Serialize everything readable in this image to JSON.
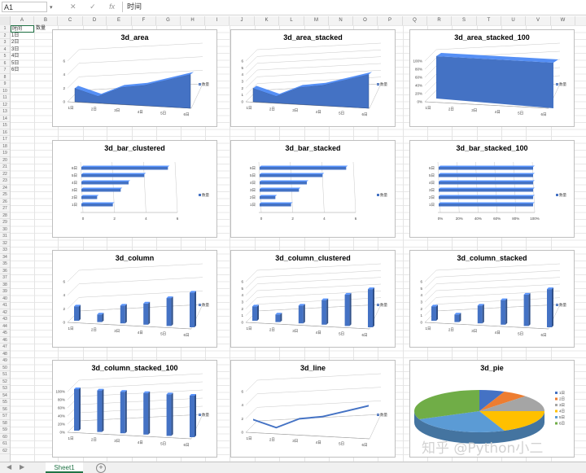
{
  "formula_bar": {
    "name_box": "A1",
    "name_arrow": "▾",
    "cancel_icon": "✕",
    "enter_icon": "✓",
    "fx_icon": "fx",
    "formula_value": "时间"
  },
  "columns": [
    "A",
    "B",
    "C",
    "D",
    "E",
    "F",
    "G",
    "H",
    "I",
    "J",
    "K",
    "L",
    "M",
    "N",
    "O",
    "P",
    "Q",
    "R",
    "S",
    "T",
    "U",
    "V",
    "W"
  ],
  "rows_count": 62,
  "cells": {
    "A1": "时间",
    "B1": "数量",
    "col_a_values": [
      "1日",
      "2日",
      "3日",
      "4日",
      "5日",
      "6日"
    ]
  },
  "sheet_tabs": {
    "active": "Sheet1",
    "add_icon": "+",
    "nav_prev": "◀",
    "nav_next": "▶"
  },
  "watermark": "知乎 @Python小二",
  "colors": {
    "series": "#4472c4",
    "pie": [
      "#4472c4",
      "#ed7d31",
      "#a5a5a5",
      "#ffc000",
      "#5b9bd5",
      "#70ad47"
    ]
  },
  "chart_data": [
    {
      "type": "area",
      "title": "3d_area",
      "categories": [
        "1日",
        "2日",
        "3日",
        "4日",
        "5日",
        "6日"
      ],
      "series": [
        {
          "name": "数量",
          "values": [
            2,
            1,
            2.5,
            3,
            4,
            5
          ]
        }
      ],
      "ylim": [
        0,
        6
      ],
      "yticks": [
        "0",
        "2",
        "4",
        "6"
      ],
      "legend": "right"
    },
    {
      "type": "area",
      "title": "3d_area_stacked",
      "categories": [
        "1日",
        "2日",
        "3日",
        "4日",
        "5日",
        "6日"
      ],
      "series": [
        {
          "name": "数量",
          "values": [
            2,
            1,
            2.5,
            3,
            4,
            5
          ]
        }
      ],
      "ylim": [
        0,
        6
      ],
      "yticks": [
        "0",
        "1",
        "2",
        "3",
        "4",
        "5",
        "6"
      ],
      "legend": "right"
    },
    {
      "type": "area",
      "title": "3d_area_stacked_100",
      "categories": [
        "1日",
        "2日",
        "3日",
        "4日",
        "5日",
        "6日"
      ],
      "series": [
        {
          "name": "数量",
          "values": [
            100,
            100,
            100,
            100,
            100,
            100
          ]
        }
      ],
      "ylim": [
        0,
        100
      ],
      "yticks": [
        "0%",
        "20%",
        "40%",
        "60%",
        "80%",
        "100%"
      ],
      "legend": "right"
    },
    {
      "type": "bar",
      "title": "3d_bar_clustered",
      "categories": [
        "1日",
        "2日",
        "3日",
        "4日",
        "5日",
        "6日"
      ],
      "series": [
        {
          "name": "数量",
          "values": [
            2,
            1,
            2.5,
            3,
            4,
            5.5
          ]
        }
      ],
      "xlim": [
        0,
        6
      ],
      "xticks": [
        "0",
        "2",
        "4",
        "6"
      ],
      "legend": "right"
    },
    {
      "type": "bar",
      "title": "3d_bar_stacked",
      "categories": [
        "1日",
        "2日",
        "3日",
        "4日",
        "5日",
        "6日"
      ],
      "series": [
        {
          "name": "数量",
          "values": [
            2,
            1,
            2.5,
            3,
            4,
            5.5
          ]
        }
      ],
      "xlim": [
        0,
        6
      ],
      "xticks": [
        "0",
        "2",
        "4",
        "6"
      ],
      "legend": "right"
    },
    {
      "type": "bar",
      "title": "3d_bar_stacked_100",
      "categories": [
        "1日",
        "2日",
        "3日",
        "4日",
        "5日",
        "6日"
      ],
      "series": [
        {
          "name": "数量",
          "values": [
            100,
            100,
            100,
            100,
            100,
            100
          ]
        }
      ],
      "xlim": [
        0,
        100
      ],
      "xticks": [
        "0%",
        "20%",
        "40%",
        "60%",
        "80%",
        "100%"
      ],
      "legend": "right"
    },
    {
      "type": "column",
      "title": "3d_column",
      "categories": [
        "1日",
        "2日",
        "3日",
        "4日",
        "5日",
        "6日"
      ],
      "series": [
        {
          "name": "数量",
          "values": [
            2,
            1,
            2.5,
            3,
            4,
            5
          ]
        }
      ],
      "ylim": [
        0,
        6
      ],
      "yticks": [
        "0",
        "2",
        "4",
        "6"
      ],
      "legend": "right"
    },
    {
      "type": "column",
      "title": "3d_column_clustered",
      "categories": [
        "1日",
        "2日",
        "3日",
        "4日",
        "5日",
        "6日"
      ],
      "series": [
        {
          "name": "数量",
          "values": [
            2,
            1,
            2.5,
            3.5,
            4.5,
            5.5
          ]
        }
      ],
      "ylim": [
        0,
        6
      ],
      "yticks": [
        "0",
        "1",
        "2",
        "3",
        "4",
        "5",
        "6"
      ],
      "legend": "right"
    },
    {
      "type": "column",
      "title": "3d_column_stacked",
      "categories": [
        "1日",
        "2日",
        "3日",
        "4日",
        "5日",
        "6日"
      ],
      "series": [
        {
          "name": "数量",
          "values": [
            2,
            1,
            2.5,
            3.5,
            4.5,
            5.5
          ]
        }
      ],
      "ylim": [
        0,
        6
      ],
      "yticks": [
        "0",
        "1",
        "2",
        "3",
        "4",
        "5",
        "6"
      ],
      "legend": "right"
    },
    {
      "type": "column",
      "title": "3d_column_stacked_100",
      "categories": [
        "1日",
        "2日",
        "3日",
        "4日",
        "5日",
        "6日"
      ],
      "series": [
        {
          "name": "数量",
          "values": [
            100,
            100,
            100,
            100,
            100,
            100
          ]
        }
      ],
      "ylim": [
        0,
        100
      ],
      "yticks": [
        "0%",
        "20%",
        "40%",
        "60%",
        "80%",
        "100%"
      ],
      "legend": "right"
    },
    {
      "type": "line",
      "title": "3d_line",
      "categories": [
        "1日",
        "2日",
        "3日",
        "4日",
        "5日",
        "6日"
      ],
      "series": [
        {
          "name": "数量",
          "values": [
            2,
            1,
            2.5,
            3,
            4,
            5
          ]
        }
      ],
      "ylim": [
        0,
        6
      ],
      "yticks": [
        "0",
        "2",
        "4",
        "6"
      ],
      "legend": "right"
    },
    {
      "type": "pie",
      "title": "3d_pie",
      "categories": [
        "1日",
        "2日",
        "3日",
        "4日",
        "5日",
        "6日"
      ],
      "series": [
        {
          "name": "数量",
          "values": [
            1,
            1,
            2,
            3,
            4,
            5
          ]
        }
      ],
      "legend": "right"
    }
  ]
}
